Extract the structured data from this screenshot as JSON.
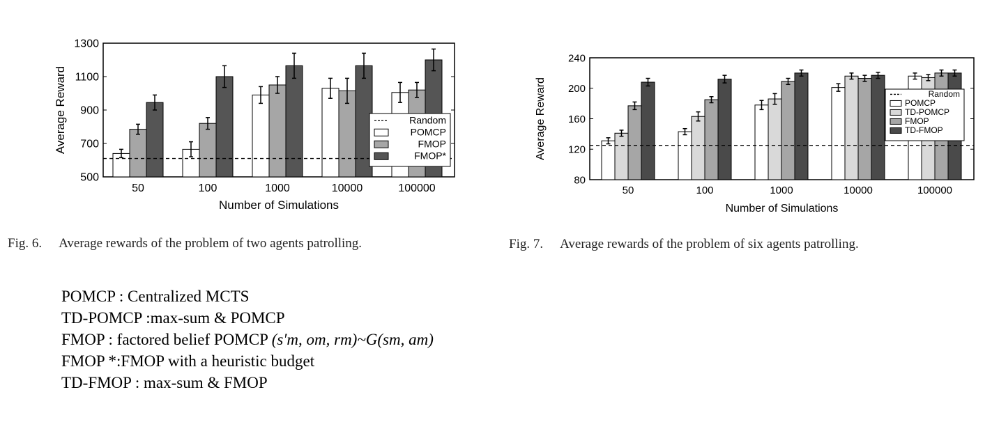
{
  "chart_data": [
    {
      "type": "bar",
      "xlabel": "Number of Simulations",
      "ylabel": "Average Reward",
      "categories": [
        "50",
        "100",
        "1000",
        "10000",
        "100000"
      ],
      "yticks": [
        "500",
        "700",
        "900",
        "1100",
        "1300"
      ],
      "ylim": [
        500,
        1300
      ],
      "legend_position": "bottom-right",
      "baseline": {
        "name": "Random",
        "value": 610,
        "style": "dashed"
      },
      "series": [
        {
          "name": "POMCP",
          "color": "#ffffff",
          "values": [
            640,
            665,
            990,
            1030,
            1005
          ],
          "errors": [
            25,
            45,
            50,
            60,
            60
          ]
        },
        {
          "name": "FMOP",
          "color": "#a6a6a6",
          "values": [
            785,
            820,
            1050,
            1015,
            1020
          ],
          "errors": [
            30,
            35,
            50,
            75,
            45
          ]
        },
        {
          "name": "FMOP*",
          "color": "#555555",
          "values": [
            945,
            1100,
            1165,
            1165,
            1200
          ],
          "errors": [
            45,
            65,
            75,
            75,
            65
          ]
        }
      ]
    },
    {
      "type": "bar",
      "xlabel": "Number of Simulations",
      "ylabel": "Average Reward",
      "categories": [
        "50",
        "100",
        "1000",
        "10000",
        "100000"
      ],
      "yticks": [
        "80",
        "120",
        "160",
        "200",
        "240"
      ],
      "ylim": [
        80,
        240
      ],
      "legend_position": "right",
      "baseline": {
        "name": "Random",
        "value": 125,
        "style": "dashed"
      },
      "series": [
        {
          "name": "POMCP",
          "color": "#ffffff",
          "values": [
            131,
            143,
            178,
            201,
            216
          ],
          "errors": [
            4,
            4,
            6,
            5,
            4
          ]
        },
        {
          "name": "TD-POMCP",
          "color": "#d9d9d9",
          "values": [
            141,
            163,
            186,
            216,
            214
          ],
          "errors": [
            4,
            6,
            7,
            4,
            4
          ]
        },
        {
          "name": "FMOP",
          "color": "#a6a6a6",
          "values": [
            177,
            185,
            209,
            213,
            220
          ],
          "errors": [
            5,
            4,
            4,
            4,
            4
          ]
        },
        {
          "name": "TD-FMOP",
          "color": "#4a4a4a",
          "values": [
            208,
            212,
            220,
            217,
            220
          ],
          "errors": [
            5,
            5,
            4,
            4,
            4
          ]
        }
      ]
    }
  ],
  "captions": {
    "fig6_num": "Fig. 6.",
    "fig6_text": "Average rewards of the problem of two agents patrolling.",
    "fig7_num": "Fig. 7.",
    "fig7_text": "Average rewards of the problem of six agents patrolling."
  },
  "notes": {
    "pomcp": "POMCP : Centralized MCTS",
    "td_pomcp": "TD-POMCP :max-sum & POMCP",
    "fmop_prefix": "FMOP : factored belief POMCP ",
    "fmop_math": "(s′m, om, rm)~G(sm, am)",
    "fmop_star": "FMOP *:FMOP with a heuristic budget",
    "td_fmop": "TD-FMOP : max-sum & FMOP"
  }
}
